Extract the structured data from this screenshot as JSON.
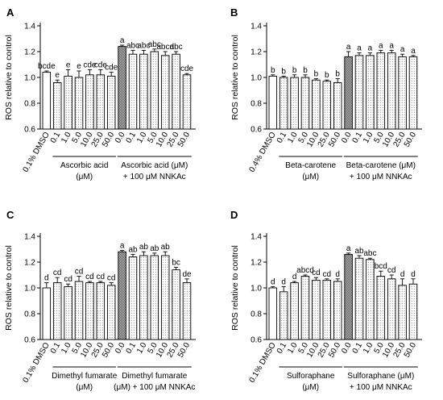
{
  "chart_data": [
    {
      "type": "bar",
      "panel_label": "A",
      "ylabel": "ROS relative to control",
      "ylim": [
        0.6,
        1.4
      ],
      "yticks": [
        "0.6",
        "0.8",
        "1.0",
        "1.2",
        "1.4"
      ],
      "categories": [
        "0.1% DMSO",
        "0.1",
        "1.0",
        "5.0",
        "10.0",
        "25.0",
        "50.0",
        "0.0",
        "0.1",
        "1.0",
        "5.0",
        "10.0",
        "25.0",
        "50.0"
      ],
      "values": [
        1.04,
        0.96,
        1.01,
        1.0,
        1.02,
        1.02,
        1.01,
        1.24,
        1.18,
        1.18,
        1.2,
        1.17,
        1.18,
        1.02
      ],
      "errors": [
        0.01,
        0.02,
        0.05,
        0.05,
        0.04,
        0.04,
        0.03,
        0.01,
        0.03,
        0.03,
        0.02,
        0.03,
        0.02,
        0.01
      ],
      "labels": [
        "bcde",
        "e",
        "e",
        "e",
        "cde",
        "cde",
        "cde",
        "a",
        "abc",
        "abc",
        "abc",
        "abcd",
        "abc",
        "cde"
      ],
      "patterns": [
        "white",
        "dot",
        "dot",
        "dot",
        "dot",
        "dot",
        "dot",
        "dense",
        "dot",
        "dot",
        "dot",
        "dot",
        "dot",
        "dot"
      ],
      "groups": [
        {
          "from": 1,
          "to": 6,
          "lines": [
            "Ascorbic acid",
            "(μM)"
          ]
        },
        {
          "from": 7,
          "to": 13,
          "lines": [
            "Ascorbic acid (μM)",
            "+ 100 μM NNKAc"
          ]
        }
      ]
    },
    {
      "type": "bar",
      "panel_label": "B",
      "ylabel": "ROS relative to control",
      "ylim": [
        0.6,
        1.4
      ],
      "yticks": [
        "0.6",
        "0.8",
        "1.0",
        "1.2",
        "1.4"
      ],
      "categories": [
        "0.4% DMSO",
        "0.1",
        "1.0",
        "5.0",
        "10.0",
        "25.0",
        "50.0",
        "0.0",
        "0.1",
        "1.0",
        "5.0",
        "10.0",
        "25.0",
        "50.0"
      ],
      "values": [
        1.01,
        1.0,
        1.0,
        1.0,
        0.98,
        0.97,
        0.96,
        1.16,
        1.17,
        1.17,
        1.19,
        1.19,
        1.16,
        1.16
      ],
      "errors": [
        0.01,
        0.01,
        0.02,
        0.02,
        0.01,
        0.01,
        0.03,
        0.04,
        0.02,
        0.02,
        0.02,
        0.02,
        0.02,
        0.01
      ],
      "labels": [
        "b",
        "b",
        "b",
        "b",
        "b",
        "b",
        "b",
        "a",
        "a",
        "a",
        "a",
        "a",
        "a",
        "a"
      ],
      "patterns": [
        "white",
        "dot",
        "dot",
        "dot",
        "dot",
        "dot",
        "dot",
        "dense",
        "dot",
        "dot",
        "dot",
        "dot",
        "dot",
        "dot"
      ],
      "groups": [
        {
          "from": 1,
          "to": 6,
          "lines": [
            "Beta-carotene",
            "(μM)"
          ]
        },
        {
          "from": 7,
          "to": 13,
          "lines": [
            "Beta-carotene (μM)",
            "+ 100 μM NNKAc"
          ]
        }
      ]
    },
    {
      "type": "bar",
      "panel_label": "C",
      "ylabel": "ROS relative to control",
      "ylim": [
        0.6,
        1.4
      ],
      "yticks": [
        "0.6",
        "0.8",
        "1.0",
        "1.2",
        "1.4"
      ],
      "categories": [
        "0.1% DMSO",
        "0.1",
        "1.0",
        "5.0",
        "10.0",
        "25.0",
        "50.0",
        "0.0",
        "0.1",
        "1.0",
        "5.0",
        "10.0",
        "25.0",
        "50.0"
      ],
      "values": [
        1.0,
        1.04,
        1.01,
        1.05,
        1.04,
        1.04,
        1.02,
        1.28,
        1.24,
        1.25,
        1.25,
        1.25,
        1.14,
        1.04
      ],
      "errors": [
        0.04,
        0.04,
        0.02,
        0.04,
        0.01,
        0.01,
        0.02,
        0.01,
        0.02,
        0.03,
        0.02,
        0.03,
        0.02,
        0.03
      ],
      "labels": [
        "d",
        "cd",
        "cd",
        "cd",
        "cd",
        "cd",
        "cd",
        "a",
        "ab",
        "ab",
        "ab",
        "ab",
        "bc",
        "de"
      ],
      "patterns": [
        "white",
        "dot",
        "dot",
        "dot",
        "dot",
        "dot",
        "dot",
        "dense",
        "dot",
        "dot",
        "dot",
        "dot",
        "dot",
        "dot"
      ],
      "groups": [
        {
          "from": 1,
          "to": 6,
          "lines": [
            "Dimethyl fumarate",
            "(μM)"
          ]
        },
        {
          "from": 7,
          "to": 13,
          "lines": [
            "Dimethyl fumarate",
            "(μM) + 100 μM NNKAc"
          ]
        }
      ]
    },
    {
      "type": "bar",
      "panel_label": "D",
      "ylabel": "ROS relative to control",
      "ylim": [
        0.6,
        1.4
      ],
      "yticks": [
        "0.6",
        "0.8",
        "1.0",
        "1.2",
        "1.4"
      ],
      "categories": [
        "0.1% DMSO",
        "0.1",
        "1.0",
        "5.0",
        "10.0",
        "25.0",
        "50.0",
        "0.0",
        "0.1",
        "1.0",
        "5.0",
        "10.0",
        "25.0",
        "50.0"
      ],
      "values": [
        1.0,
        0.97,
        1.04,
        1.09,
        1.06,
        1.06,
        1.05,
        1.26,
        1.23,
        1.22,
        1.09,
        1.07,
        1.02,
        1.03
      ],
      "errors": [
        0.01,
        0.04,
        0.01,
        0.01,
        0.02,
        0.01,
        0.02,
        0.01,
        0.02,
        0.01,
        0.04,
        0.03,
        0.05,
        0.04
      ],
      "labels": [
        "d",
        "d",
        "d",
        "abcd",
        "cd",
        "cd",
        "d",
        "a",
        "ab",
        "abc",
        "bcd",
        "cd",
        "d",
        "d"
      ],
      "patterns": [
        "white",
        "dot",
        "dot",
        "dot",
        "dot",
        "dot",
        "dot",
        "dense",
        "dot",
        "dot",
        "dot",
        "dot",
        "dot",
        "dot"
      ],
      "groups": [
        {
          "from": 1,
          "to": 6,
          "lines": [
            "Sulforaphane",
            "(μM)"
          ]
        },
        {
          "from": 7,
          "to": 13,
          "lines": [
            "Sulforaphane (μM)",
            "+ 100 μM NNKAc"
          ]
        }
      ]
    }
  ]
}
